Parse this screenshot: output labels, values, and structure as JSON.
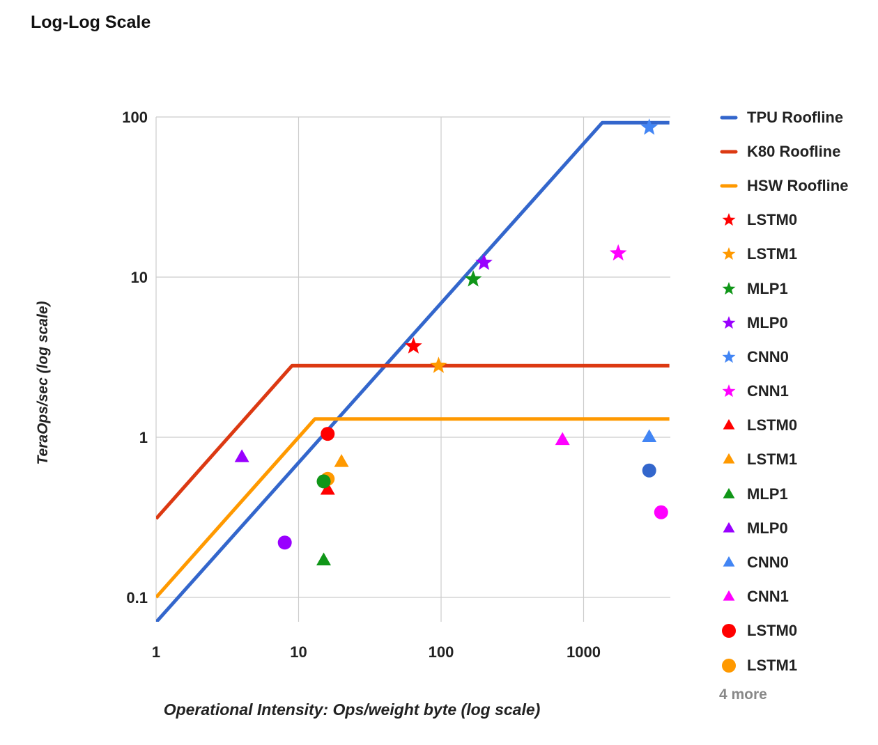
{
  "chart_data": {
    "type": "scatter",
    "title": "Log-Log Scale",
    "xlabel": "Operational Intensity: Ops/weight byte (log scale)",
    "ylabel": "TeraOps/sec (log scale)",
    "x_scale": "log",
    "y_scale": "log",
    "xlim": [
      1,
      4000
    ],
    "ylim": [
      0.07,
      100
    ],
    "x_ticks": [
      "1",
      "10",
      "100",
      "1000"
    ],
    "y_ticks": [
      "0.1",
      "1",
      "10",
      "100"
    ],
    "grid": true,
    "legend_position": "right",
    "series": [
      {
        "name": "TPU Roofline",
        "kind": "line",
        "color": "#3366cc",
        "x": [
          1,
          1350,
          4000
        ],
        "y": [
          0.07,
          92,
          92
        ]
      },
      {
        "name": "K80 Roofline",
        "kind": "line",
        "color": "#dc3912",
        "x": [
          1,
          9,
          4000
        ],
        "y": [
          0.31,
          2.8,
          2.8
        ]
      },
      {
        "name": "HSW Roofline",
        "kind": "line",
        "color": "#ff9900",
        "x": [
          1,
          13,
          4000
        ],
        "y": [
          0.1,
          1.3,
          1.3
        ]
      },
      {
        "name": "LSTM0",
        "kind": "star",
        "color": "#ff0000",
        "x": [
          64
        ],
        "y": [
          3.7
        ]
      },
      {
        "name": "LSTM1",
        "kind": "star",
        "color": "#ff9900",
        "x": [
          96
        ],
        "y": [
          2.8
        ]
      },
      {
        "name": "MLP1",
        "kind": "star",
        "color": "#109618",
        "x": [
          168
        ],
        "y": [
          9.7
        ]
      },
      {
        "name": "MLP0",
        "kind": "star",
        "color": "#9900ff",
        "x": [
          200
        ],
        "y": [
          12.3
        ]
      },
      {
        "name": "CNN0",
        "kind": "star",
        "color": "#4285f4",
        "x": [
          2888
        ],
        "y": [
          86
        ]
      },
      {
        "name": "CNN1",
        "kind": "star",
        "color": "#ff00ff",
        "x": [
          1750
        ],
        "y": [
          14.1
        ]
      },
      {
        "name": "LSTM0",
        "kind": "triangle",
        "color": "#ff0000",
        "x": [
          16
        ],
        "y": [
          0.47
        ]
      },
      {
        "name": "LSTM1",
        "kind": "triangle",
        "color": "#ff9900",
        "x": [
          20
        ],
        "y": [
          0.7
        ]
      },
      {
        "name": "MLP1",
        "kind": "triangle",
        "color": "#109618",
        "x": [
          15
        ],
        "y": [
          0.17
        ]
      },
      {
        "name": "MLP0",
        "kind": "triangle",
        "color": "#9900ff",
        "x": [
          4
        ],
        "y": [
          0.75
        ]
      },
      {
        "name": "CNN0",
        "kind": "triangle",
        "color": "#4285f4",
        "x": [
          2888
        ],
        "y": [
          1.0
        ]
      },
      {
        "name": "CNN1",
        "kind": "triangle",
        "color": "#ff00ff",
        "x": [
          711
        ],
        "y": [
          0.96
        ]
      },
      {
        "name": "LSTM0",
        "kind": "circle",
        "color": "#ff0000",
        "x": [
          16
        ],
        "y": [
          1.05
        ]
      },
      {
        "name": "LSTM1",
        "kind": "circle",
        "color": "#ff9900",
        "x": [
          16
        ],
        "y": [
          0.55
        ]
      },
      {
        "name": "MLP1",
        "kind": "circle",
        "color": "#109618",
        "x": [
          15
        ],
        "y": [
          0.53
        ]
      },
      {
        "name": "MLP0",
        "kind": "circle",
        "color": "#9900ff",
        "x": [
          8
        ],
        "y": [
          0.22
        ]
      },
      {
        "name": "CNN0",
        "kind": "circle",
        "color": "#3366cc",
        "x": [
          2888
        ],
        "y": [
          0.62
        ]
      },
      {
        "name": "CNN1",
        "kind": "circle",
        "color": "#ff00ff",
        "x": [
          3500
        ],
        "y": [
          0.34
        ]
      }
    ],
    "legend_entries": [
      {
        "label": "TPU Roofline",
        "kind": "line",
        "color": "#3366cc"
      },
      {
        "label": "K80 Roofline",
        "kind": "line",
        "color": "#dc3912"
      },
      {
        "label": "HSW Roofline",
        "kind": "line",
        "color": "#ff9900"
      },
      {
        "label": "LSTM0",
        "kind": "star",
        "color": "#ff0000"
      },
      {
        "label": "LSTM1",
        "kind": "star",
        "color": "#ff9900"
      },
      {
        "label": "MLP1",
        "kind": "star",
        "color": "#109618"
      },
      {
        "label": "MLP0",
        "kind": "star",
        "color": "#9900ff"
      },
      {
        "label": "CNN0",
        "kind": "star",
        "color": "#4285f4"
      },
      {
        "label": "CNN1",
        "kind": "star",
        "color": "#ff00ff"
      },
      {
        "label": "LSTM0",
        "kind": "triangle",
        "color": "#ff0000"
      },
      {
        "label": "LSTM1",
        "kind": "triangle",
        "color": "#ff9900"
      },
      {
        "label": "MLP1",
        "kind": "triangle",
        "color": "#109618"
      },
      {
        "label": "MLP0",
        "kind": "triangle",
        "color": "#9900ff"
      },
      {
        "label": "CNN0",
        "kind": "triangle",
        "color": "#4285f4"
      },
      {
        "label": "CNN1",
        "kind": "triangle",
        "color": "#ff00ff"
      },
      {
        "label": "LSTM0",
        "kind": "circle",
        "color": "#ff0000"
      },
      {
        "label": "LSTM1",
        "kind": "circle",
        "color": "#ff9900"
      }
    ],
    "legend_more": "4 more"
  }
}
